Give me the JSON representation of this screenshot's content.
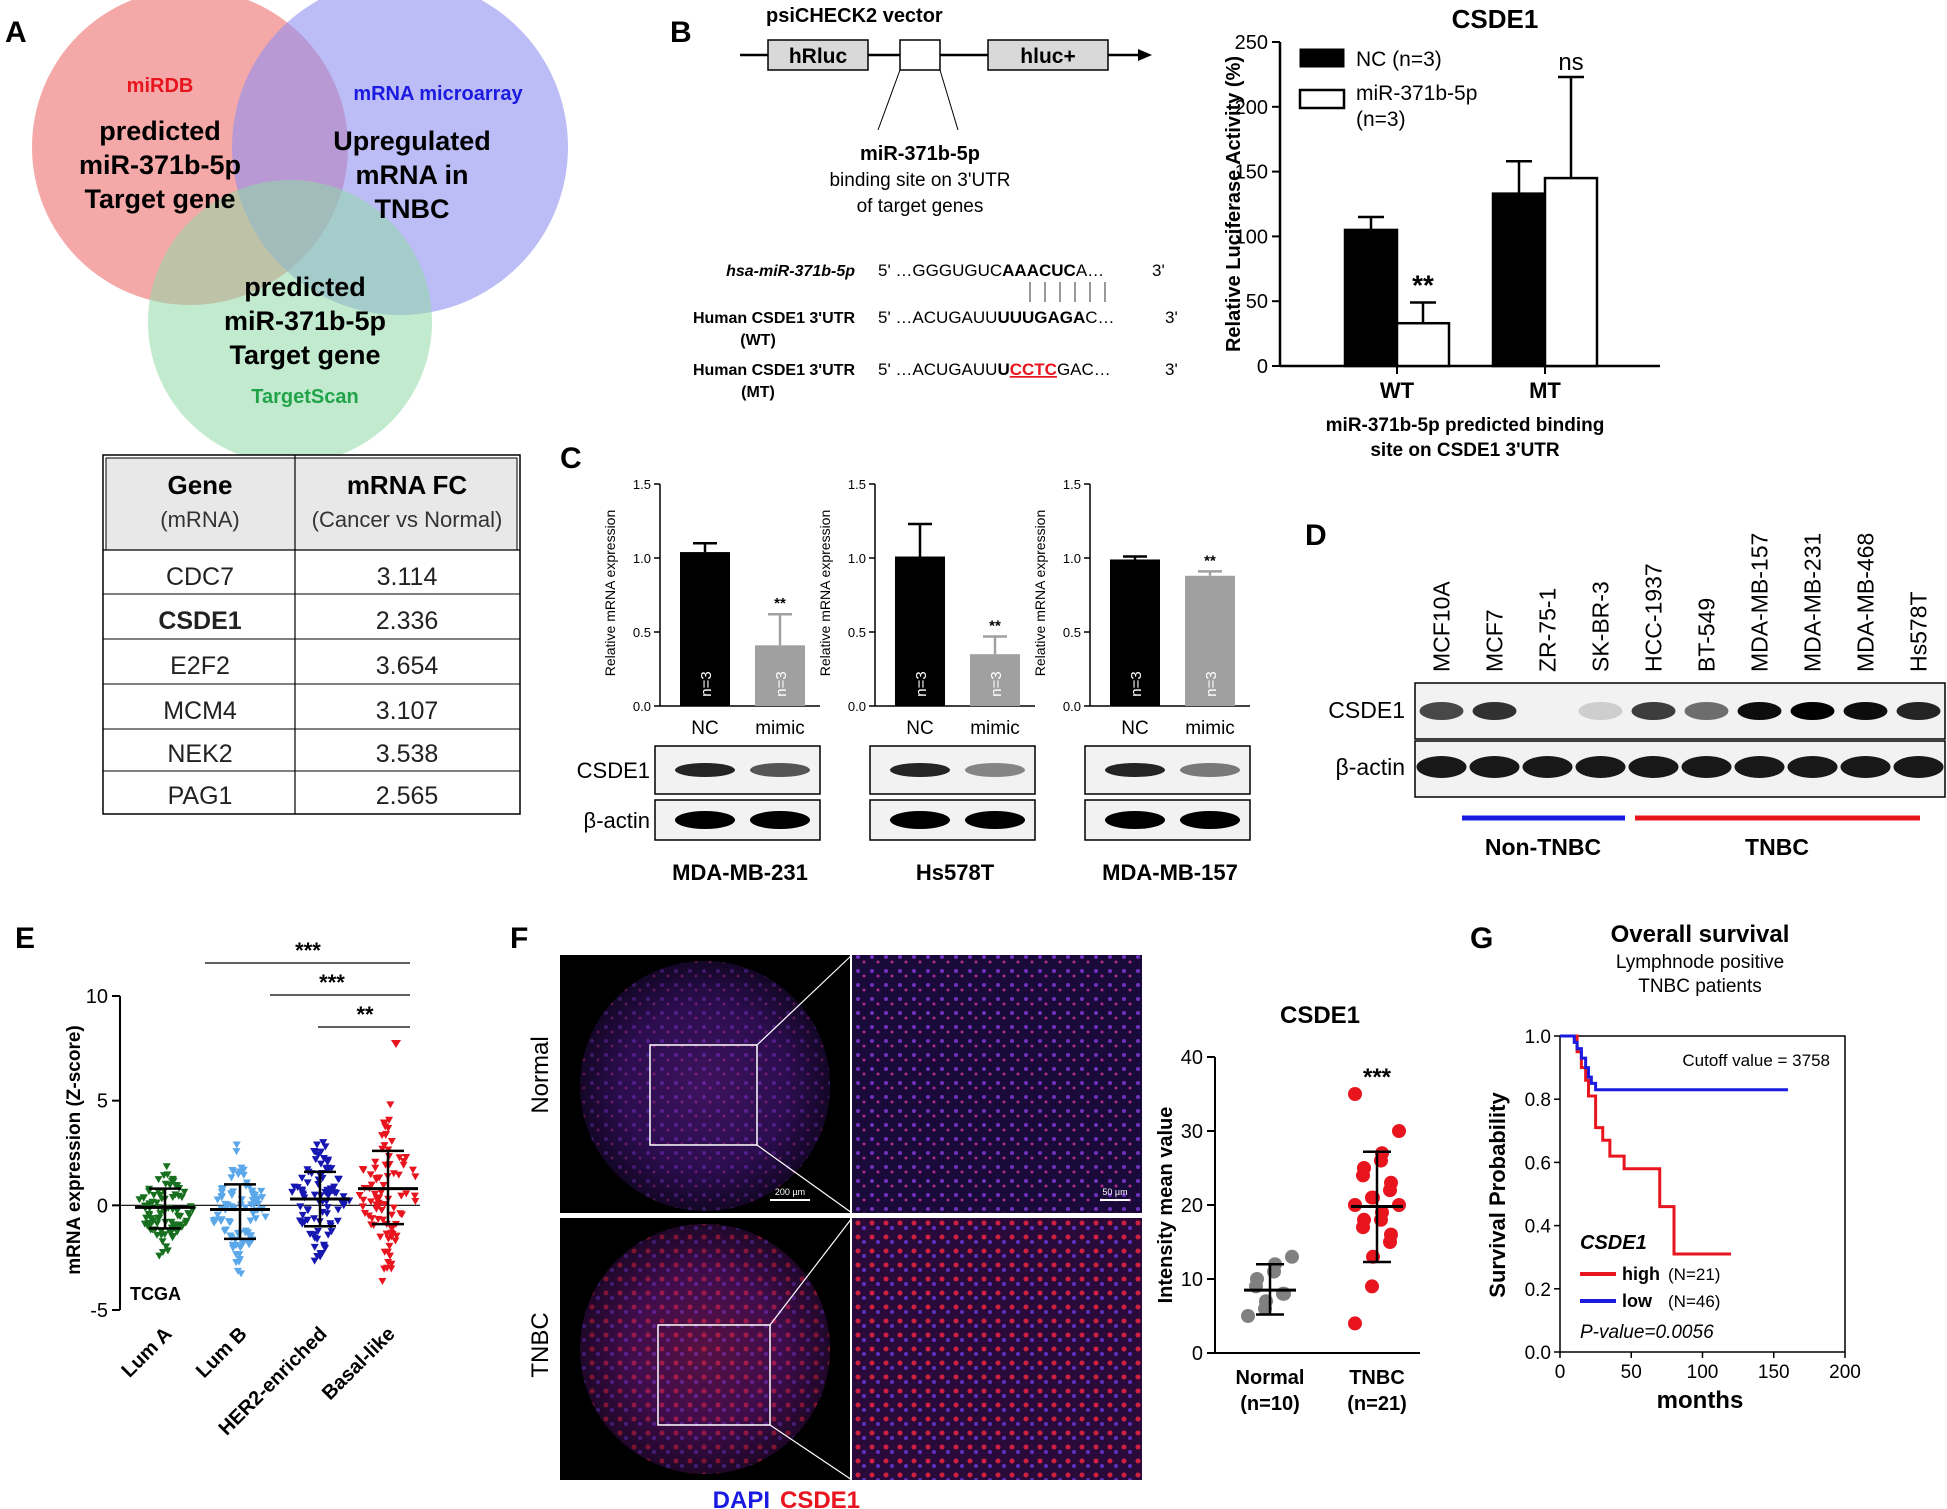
{
  "panel_letters": [
    "A",
    "B",
    "C",
    "D",
    "E",
    "F",
    "G"
  ],
  "panel_a": {
    "venn": {
      "mirdb_label": "miRDB",
      "mirdb_lines": [
        "predicted",
        "miR-371b-5p",
        "Target gene"
      ],
      "micro_label": "mRNA microarray",
      "micro_lines": [
        "Upregulated",
        "mRNA in",
        "TNBC"
      ],
      "ts_lines": [
        "predicted",
        "miR-371b-5p",
        "Target gene"
      ],
      "ts_label": "TargetScan",
      "colors": {
        "mirdb": "#f28b8b",
        "micro": "#8f8ff0",
        "targetscan": "#8fd9a8",
        "mirdb_text": "#e8141e",
        "micro_text": "#1a1ae0",
        "ts_text": "#21a34a"
      }
    },
    "table": {
      "header": {
        "gene": "Gene",
        "gene_sub": "(mRNA)",
        "fc": "mRNA FC",
        "fc_sub": "(Cancer vs Normal)"
      },
      "rows": [
        {
          "gene": "CDC7",
          "fc": "3.114"
        },
        {
          "gene": "CSDE1",
          "fc": "2.336"
        },
        {
          "gene": "E2F2",
          "fc": "3.654"
        },
        {
          "gene": "MCM4",
          "fc": "3.107"
        },
        {
          "gene": "NEK2",
          "fc": "3.538"
        },
        {
          "gene": "PAG1",
          "fc": "2.565"
        }
      ]
    }
  },
  "panel_b": {
    "vector_title": "psiCHECK2 vector",
    "box1": "hRluc",
    "box2": "hluc+",
    "binding_title": "miR-371b-5p",
    "binding_lines": [
      "binding site on 3'UTR",
      "of target genes"
    ],
    "seq": [
      {
        "label": "hsa-miR-371b-5p",
        "label2": "",
        "seq_pre": "5' …GGGUGUC",
        "seq_bold": "AAACUC",
        "seq_red": "",
        "seq_post": "A…",
        "end": "3'"
      },
      {
        "label": "Human CSDE1 3'UTR",
        "label2": "(WT)",
        "seq_pre": "5' …ACUGAUU",
        "seq_bold": "UUUGAGA",
        "seq_red": "",
        "seq_post": "C…",
        "end": "3'"
      },
      {
        "label": "Human CSDE1 3'UTR",
        "label2": "(MT)",
        "seq_pre": "5' …ACUGAUU",
        "seq_bold": "U",
        "seq_red": "CCTC",
        "seq_post": "GAC…",
        "end": "3'"
      }
    ],
    "chart": {
      "type": "bar",
      "title": "CSDE1",
      "ylabel": "Relative Luciferase Activity (%)",
      "xlabel_lines": [
        "miR-371b-5p predicted binding",
        "site on CSDE1 3'UTR"
      ],
      "categories": [
        "WT",
        "MT"
      ],
      "ylim": [
        0,
        250
      ],
      "yticks": [
        0,
        50,
        100,
        150,
        200,
        250
      ],
      "series": [
        {
          "name": "NC (n=3)",
          "values": [
            105,
            133
          ],
          "errors": [
            10,
            25
          ]
        },
        {
          "name": "miR-371b-5p (n=3)",
          "values": [
            33,
            145
          ],
          "errors": [
            16,
            78
          ]
        }
      ],
      "legend": [
        "NC (n=3)",
        "miR-371b-5p",
        "(n=3)"
      ],
      "annotations": [
        "**",
        "ns"
      ]
    }
  },
  "panel_c": {
    "ylabel": "Relative mRNA expression",
    "charts": [
      {
        "cell": "MDA-MB-231",
        "ylim": [
          0,
          1.5
        ],
        "yticks": [
          "0.0",
          "0.5",
          "1.0",
          "1.5"
        ],
        "categories": [
          "NC",
          "mimic"
        ],
        "values": [
          1.04,
          0.41
        ],
        "errors": [
          0.06,
          0.21
        ],
        "n": [
          "n=3",
          "n=3"
        ],
        "sig": "**"
      },
      {
        "cell": "Hs578T",
        "ylim": [
          0,
          1.5
        ],
        "yticks": [
          "0.0",
          "0.5",
          "1.0",
          "1.5"
        ],
        "categories": [
          "NC",
          "mimic"
        ],
        "values": [
          1.01,
          0.35
        ],
        "errors": [
          0.22,
          0.12
        ],
        "n": [
          "n=3",
          "n=3"
        ],
        "sig": "**"
      },
      {
        "cell": "MDA-MB-157",
        "ylim": [
          0,
          1.5
        ],
        "yticks": [
          "0.0",
          "0.5",
          "1.0",
          "1.5"
        ],
        "categories": [
          "NC",
          "mimic"
        ],
        "values": [
          0.99,
          0.88
        ],
        "errors": [
          0.02,
          0.03
        ],
        "n": [
          "n=3",
          "n=3"
        ],
        "sig": "**"
      }
    ],
    "blot_labels": [
      "CSDE1",
      "β-actin"
    ],
    "colors": {
      "nc": "#000000",
      "mimic": "#a0a0a0"
    }
  },
  "panel_d": {
    "lanes": [
      "MCF10A",
      "MCF7",
      "ZR-75-1",
      "SK-BR-3",
      "HCC-1937",
      "BT-549",
      "MDA-MB-157",
      "MDA-MB-231",
      "MDA-MB-468",
      "Hs578T"
    ],
    "blot_labels": [
      "CSDE1",
      "β-actin"
    ],
    "groups": [
      {
        "label": "Non-TNBC",
        "color": "#1a1ae0"
      },
      {
        "label": "TNBC",
        "color": "#e8141e"
      }
    ]
  },
  "panel_e": {
    "type": "scatter",
    "ylabel": "mRNA expression (Z-score)",
    "categories": [
      "Lum A",
      "Lum B",
      "HER2-enriched",
      "Basal-like"
    ],
    "means": [
      -0.1,
      -0.2,
      0.3,
      0.8
    ],
    "sd_low": [
      -1.1,
      -1.6,
      -1.0,
      -0.9
    ],
    "sd_high": [
      0.8,
      1.0,
      1.6,
      2.6
    ],
    "ylim": [
      -5,
      10
    ],
    "yticks": [
      "-5",
      "0",
      "5",
      "10"
    ],
    "sig": [
      "***",
      "***",
      "**"
    ],
    "source_label": "TCGA",
    "colors": [
      "#17701f",
      "#5aa7ea",
      "#1616b0",
      "#e8141e"
    ]
  },
  "panel_f": {
    "row_labels": [
      "Normal",
      "TNBC"
    ],
    "scale_labels": [
      "200 µm",
      "50 µm"
    ],
    "stain_labels": [
      "DAPI",
      "CSDE1"
    ],
    "chart": {
      "type": "scatter",
      "title": "CSDE1",
      "ylabel": "Intensity mean value",
      "categories": [
        "Normal",
        "TNBC"
      ],
      "category_n": [
        "(n=10)",
        "(n=21)"
      ],
      "ylim": [
        0,
        40
      ],
      "yticks": [
        "0",
        "10",
        "20",
        "30",
        "40"
      ],
      "normal_points": [
        5,
        6,
        7,
        8,
        8,
        9,
        10,
        11,
        12,
        13
      ],
      "tnbc_points": [
        4,
        9,
        13,
        15,
        16,
        17,
        18,
        18,
        19,
        20,
        20,
        21,
        21,
        22,
        23,
        24,
        25,
        26,
        27,
        30,
        35
      ],
      "means": [
        8.5,
        19.8
      ],
      "sd": [
        [
          5.2,
          12.0
        ],
        [
          12.3,
          27.2
        ]
      ],
      "sig": "***",
      "colors": [
        "#808080",
        "#e8141e"
      ]
    }
  },
  "panel_g": {
    "type": "line",
    "title": "Overall survival",
    "subtitle_lines": [
      "Lymphnode positive",
      "TNBC patients"
    ],
    "cutoff": "Cutoff value = 3758",
    "ylabel": "Survival Probability",
    "xlabel": "months",
    "xlim": [
      0,
      200
    ],
    "xticks": [
      "0",
      "50",
      "100",
      "150",
      "200"
    ],
    "ylim": [
      0,
      1
    ],
    "yticks": [
      "0.0",
      "0.2",
      "0.4",
      "0.6",
      "0.8",
      "1.0"
    ],
    "legend_title": "CSDE1",
    "legend": [
      {
        "name": "high",
        "n": "(N=21)",
        "color": "#e8141e"
      },
      {
        "name": "low",
        "n": "(N=46)",
        "color": "#1a1ae0"
      }
    ],
    "pvalue": "P-value=0.0056",
    "series": [
      {
        "name": "high",
        "x": [
          0,
          10,
          12,
          15,
          18,
          20,
          25,
          30,
          35,
          40,
          45,
          60,
          70,
          75,
          80,
          120
        ],
        "y": [
          1.0,
          1.0,
          0.95,
          0.9,
          0.86,
          0.81,
          0.71,
          0.67,
          0.62,
          0.62,
          0.58,
          0.58,
          0.46,
          0.46,
          0.31,
          0.31
        ]
      },
      {
        "name": "low",
        "x": [
          0,
          5,
          10,
          12,
          15,
          18,
          20,
          22,
          25,
          160
        ],
        "y": [
          1.0,
          1.0,
          0.98,
          0.96,
          0.93,
          0.9,
          0.87,
          0.85,
          0.83,
          0.83
        ]
      }
    ]
  }
}
